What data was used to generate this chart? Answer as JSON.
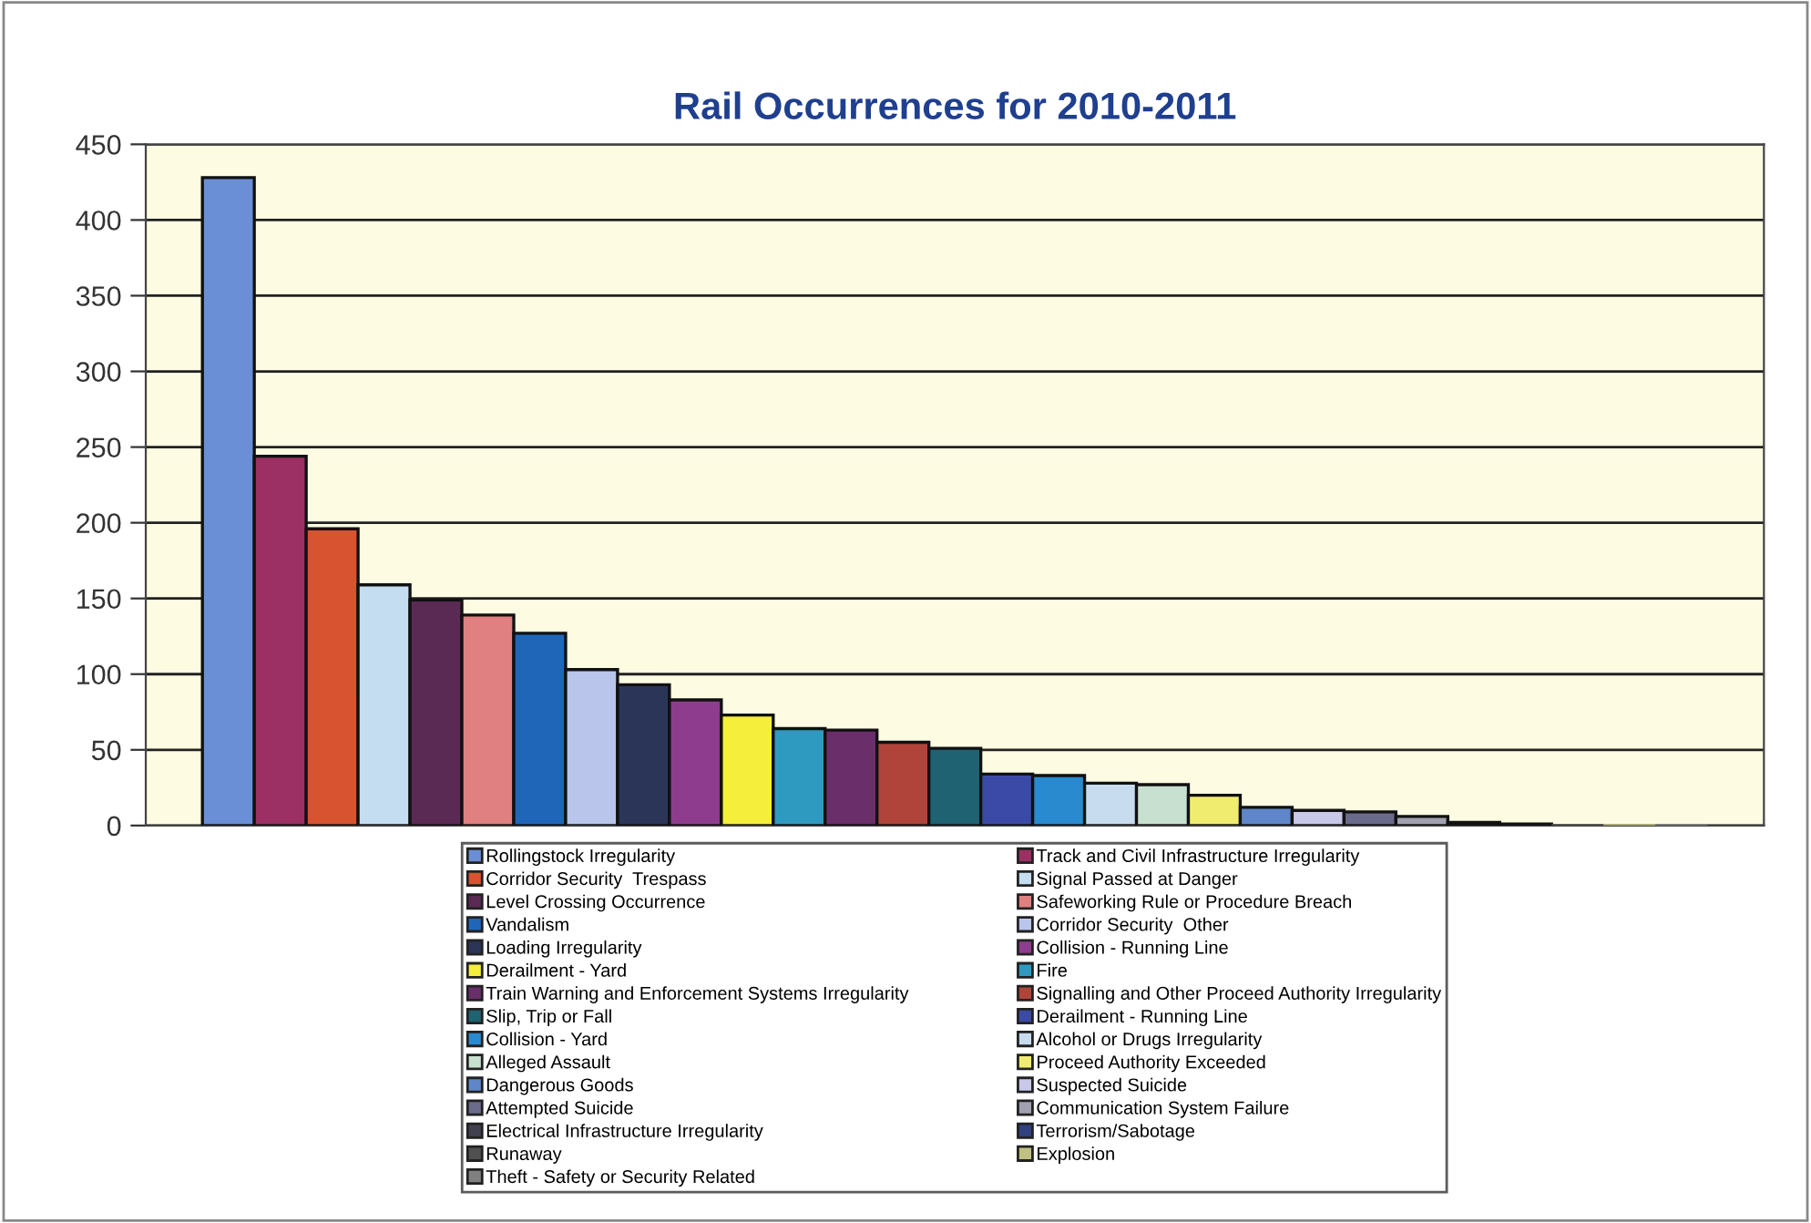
{
  "chart_data": {
    "type": "bar",
    "title": "Rail Occurrences for 2010-2011",
    "categories": [
      null
    ],
    "series": [
      {
        "name": "Rollingstock Irregularity",
        "color": "#6a8fd6",
        "values": [
          428
        ]
      },
      {
        "name": "Track and Civil Infrastructure Irregularity",
        "color": "#9c2f63",
        "values": [
          244
        ]
      },
      {
        "name": "Corridor Security  Trespass",
        "color": "#d8532f",
        "values": [
          196
        ]
      },
      {
        "name": "Signal Passed at Danger",
        "color": "#c5ddf0",
        "values": [
          159
        ]
      },
      {
        "name": "Level Crossing Occurrence",
        "color": "#5a2a55",
        "values": [
          149
        ]
      },
      {
        "name": "Safeworking Rule or Procedure Breach",
        "color": "#e08080",
        "values": [
          139
        ]
      },
      {
        "name": "Vandalism",
        "color": "#1f66b8",
        "values": [
          127
        ]
      },
      {
        "name": "Corridor Security  Other",
        "color": "#b9c5ea",
        "values": [
          103
        ]
      },
      {
        "name": "Loading Irregularity",
        "color": "#2a3558",
        "values": [
          93
        ]
      },
      {
        "name": "Collision - Running Line",
        "color": "#8e3c8e",
        "values": [
          83
        ]
      },
      {
        "name": "Derailment - Yard",
        "color": "#f5ee3a",
        "values": [
          73
        ]
      },
      {
        "name": "Fire",
        "color": "#2f9ac0",
        "values": [
          64
        ]
      },
      {
        "name": "Train Warning and Enforcement Systems Irregularity",
        "color": "#6a2e6a",
        "values": [
          63
        ]
      },
      {
        "name": "Signalling and Other Proceed Authority Irregularity",
        "color": "#b0443a",
        "values": [
          55
        ]
      },
      {
        "name": "Slip, Trip or Fall",
        "color": "#1f6272",
        "values": [
          51
        ]
      },
      {
        "name": "Derailment - Running Line",
        "color": "#3a4aa6",
        "values": [
          34
        ]
      },
      {
        "name": "Collision - Yard",
        "color": "#2a8ad0",
        "values": [
          33
        ]
      },
      {
        "name": "Alcohol or Drugs Irregularity",
        "color": "#c8dcef",
        "values": [
          28
        ]
      },
      {
        "name": "Alleged Assault",
        "color": "#c8e0d0",
        "values": [
          27
        ]
      },
      {
        "name": "Proceed Authority Exceeded",
        "color": "#f0ec70",
        "values": [
          20
        ]
      },
      {
        "name": "Dangerous Goods",
        "color": "#5f86c8",
        "values": [
          12
        ]
      },
      {
        "name": "Suspected Suicide",
        "color": "#c8c8e8",
        "values": [
          10
        ]
      },
      {
        "name": "Attempted Suicide",
        "color": "#6a6a8a",
        "values": [
          9
        ]
      },
      {
        "name": "Communication System Failure",
        "color": "#a0a0b0",
        "values": [
          6
        ]
      },
      {
        "name": "Electrical Infrastructure Irregularity",
        "color": "#404050",
        "values": [
          2
        ]
      },
      {
        "name": "Terrorism/Sabotage",
        "color": "#304080",
        "values": [
          1
        ]
      },
      {
        "name": "Runaway",
        "color": "#505050",
        "values": [
          0
        ]
      },
      {
        "name": "Explosion",
        "color": "#c0c080",
        "values": [
          0
        ]
      },
      {
        "name": "Theft - Safety or Security Related",
        "color": "#808080",
        "values": [
          0
        ]
      }
    ],
    "ylim": [
      0,
      450
    ],
    "yticks": [
      0,
      50,
      100,
      150,
      200,
      250,
      300,
      350,
      400,
      450
    ],
    "grid": "y",
    "legend": "bottom",
    "tick_labels": "y"
  }
}
